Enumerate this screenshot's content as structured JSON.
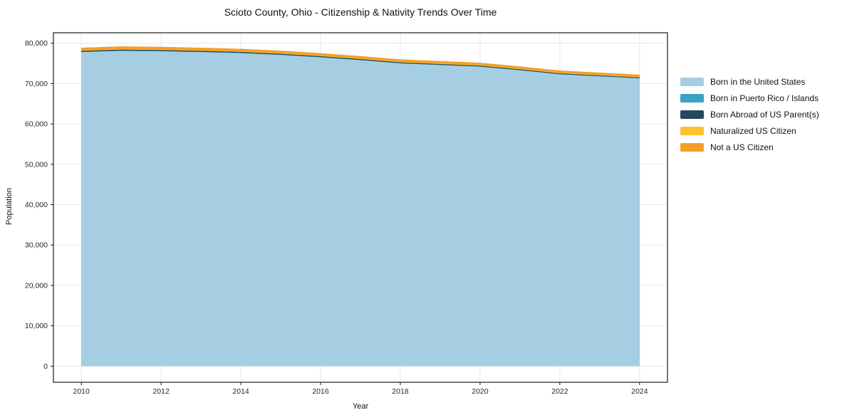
{
  "page": {
    "background": "#ffffff"
  },
  "chart": {
    "title": "Scioto County, Ohio - Citizenship & Nativity Trends Over Time",
    "xlabel": "Year",
    "ylabel": "Population"
  },
  "chart_data": {
    "type": "area",
    "stacked": true,
    "title": "Scioto County, Ohio - Citizenship & Nativity Trends Over Time",
    "xlabel": "Year",
    "ylabel": "Population",
    "x": [
      2010,
      2011,
      2012,
      2013,
      2014,
      2015,
      2016,
      2017,
      2018,
      2019,
      2020,
      2021,
      2022,
      2023,
      2024
    ],
    "series": [
      {
        "name": "Born in the United States",
        "color": "#a6cee3",
        "values": [
          77850,
          78150,
          78050,
          77850,
          77600,
          77150,
          76550,
          75850,
          75050,
          74650,
          74250,
          73350,
          72350,
          71850,
          71350
        ]
      },
      {
        "name": "Born in Puerto Rico / Islands",
        "color": "#39a3c2",
        "values": [
          60,
          58,
          56,
          54,
          52,
          50,
          48,
          46,
          44,
          42,
          40,
          38,
          36,
          34,
          32
        ]
      },
      {
        "name": "Born Abroad of US Parent(s)",
        "color": "#26475c",
        "values": [
          260,
          260,
          255,
          250,
          245,
          240,
          230,
          225,
          220,
          210,
          205,
          200,
          195,
          185,
          180
        ]
      },
      {
        "name": "Naturalized US Citizen",
        "color": "#fcc32d",
        "values": [
          140,
          145,
          148,
          150,
          152,
          154,
          156,
          158,
          160,
          162,
          164,
          166,
          168,
          170,
          172
        ]
      },
      {
        "name": "Not a US Citizen",
        "color": "#f59d28",
        "values": [
          540,
          560,
          555,
          545,
          530,
          520,
          510,
          500,
          490,
          480,
          470,
          460,
          450,
          445,
          440
        ]
      }
    ],
    "xticks": [
      2010,
      2012,
      2014,
      2016,
      2018,
      2020,
      2022,
      2024
    ],
    "yticks": [
      0,
      10000,
      20000,
      30000,
      40000,
      50000,
      60000,
      70000,
      80000
    ],
    "xlim": [
      2009.3,
      2024.7
    ],
    "ylim": [
      -4000,
      82600
    ],
    "grid": true,
    "grid_color": "#e7e7e7",
    "axis_color": "#1a1a1a",
    "tick_label_color": "#262626",
    "legend_position": "right-outside"
  }
}
